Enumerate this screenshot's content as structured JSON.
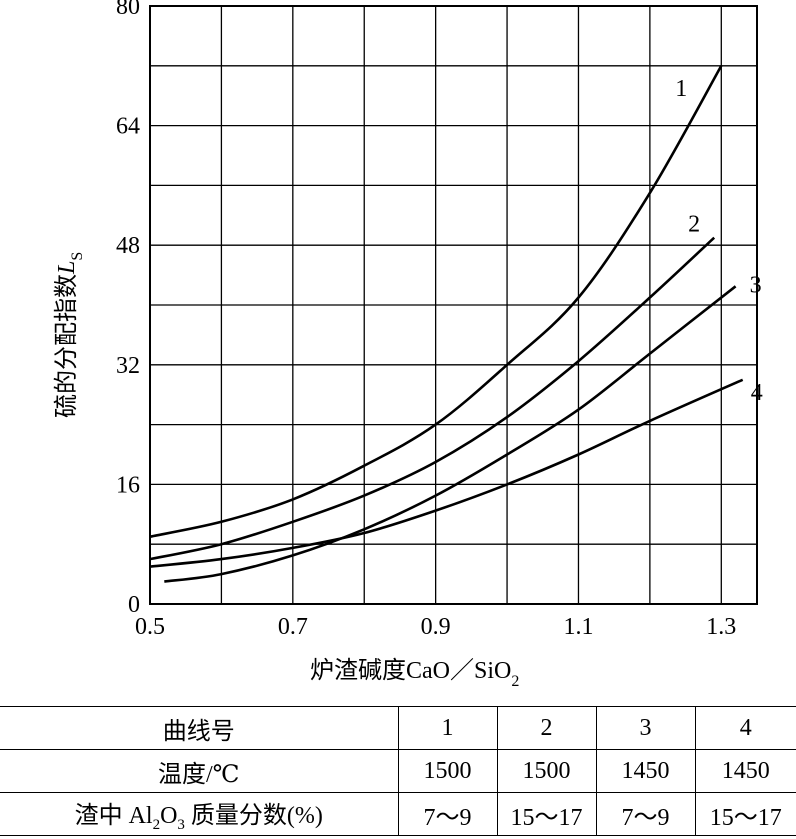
{
  "chart_data": {
    "type": "line",
    "xlabel_main": "炉渣碱度CaO／SiO",
    "xlabel_sub": "2",
    "ylabel_main": "硫的分配指数",
    "ylabel_symbol": "L",
    "ylabel_sub": "S",
    "xlim": [
      0.5,
      1.35
    ],
    "ylim": [
      0,
      80
    ],
    "x_ticks": [
      "0.5",
      "0.7",
      "0.9",
      "1.1",
      "1.3"
    ],
    "y_ticks": [
      "0",
      "16",
      "32",
      "48",
      "64",
      "80"
    ],
    "grid": true,
    "series": [
      {
        "label": "1",
        "x": [
          0.5,
          0.6,
          0.7,
          0.8,
          0.9,
          1.0,
          1.1,
          1.2,
          1.3
        ],
        "y": [
          9,
          11,
          14,
          18.5,
          24,
          32,
          41,
          55,
          72
        ]
      },
      {
        "label": "2",
        "x": [
          0.5,
          0.6,
          0.7,
          0.8,
          0.9,
          1.0,
          1.1,
          1.2,
          1.29
        ],
        "y": [
          6,
          8,
          11,
          14.5,
          19,
          25,
          32.5,
          41,
          49
        ]
      },
      {
        "label": "3",
        "x": [
          0.52,
          0.6,
          0.7,
          0.8,
          0.9,
          1.0,
          1.1,
          1.2,
          1.32
        ],
        "y": [
          3,
          4,
          6.5,
          10,
          14.5,
          20,
          26,
          33.5,
          42.5
        ]
      },
      {
        "label": "4",
        "x": [
          0.5,
          0.6,
          0.7,
          0.8,
          0.9,
          1.0,
          1.1,
          1.2,
          1.33
        ],
        "y": [
          5,
          6,
          7.5,
          9.5,
          12.5,
          16,
          20,
          24.5,
          30
        ]
      }
    ]
  },
  "table": {
    "header": [
      "曲线号",
      "1",
      "2",
      "3",
      "4"
    ],
    "rows": [
      {
        "label": "温度/℃",
        "values": [
          "1500",
          "1500",
          "1450",
          "1450"
        ]
      },
      {
        "label_main": "渣中 Al",
        "label_sub1": "2",
        "label_mid": "O",
        "label_sub2": "3",
        "label_tail": " 质量分数(%)",
        "values": [
          "7～9",
          "15～17",
          "7～9",
          "15～17"
        ]
      }
    ]
  }
}
